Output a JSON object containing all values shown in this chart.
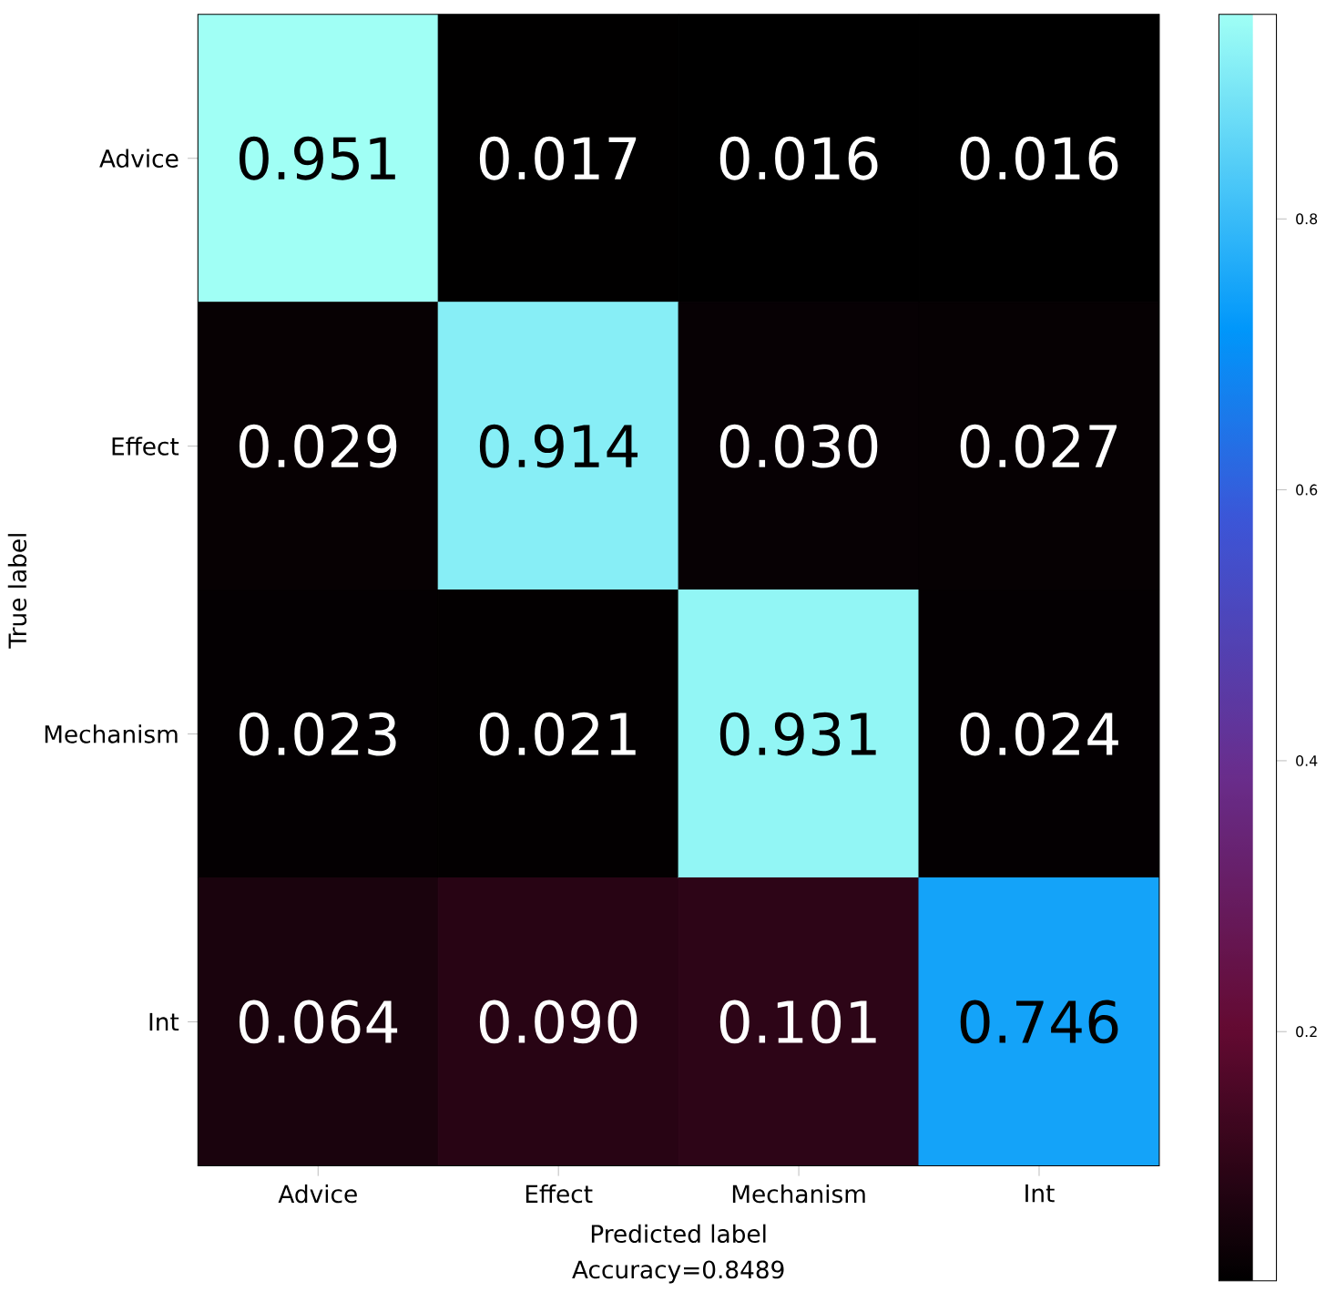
{
  "chart_data": {
    "type": "heatmap",
    "xlabel": "Predicted label",
    "ylabel": "True label",
    "annotations": [
      "Accuracy=0.8489"
    ],
    "categories": [
      "Advice",
      "Effect",
      "Mechanism",
      "Int"
    ],
    "y_categories": [
      "Advice",
      "Effect",
      "Mechanism",
      "Int"
    ],
    "cells": [
      [
        0.951,
        0.017,
        0.016,
        0.016
      ],
      [
        0.029,
        0.914,
        0.03,
        0.027
      ],
      [
        0.023,
        0.021,
        0.931,
        0.024
      ],
      [
        0.064,
        0.09,
        0.101,
        0.746
      ]
    ],
    "cell_labels": [
      [
        "0.951",
        "0.017",
        "0.016",
        "0.016"
      ],
      [
        "0.029",
        "0.914",
        "0.030",
        "0.027"
      ],
      [
        "0.023",
        "0.021",
        "0.931",
        "0.024"
      ],
      [
        "0.064",
        "0.090",
        "0.101",
        "0.746"
      ]
    ],
    "clim": [
      0.016,
      0.951
    ],
    "cticks": [
      0.2,
      0.4,
      0.6,
      0.8
    ]
  }
}
